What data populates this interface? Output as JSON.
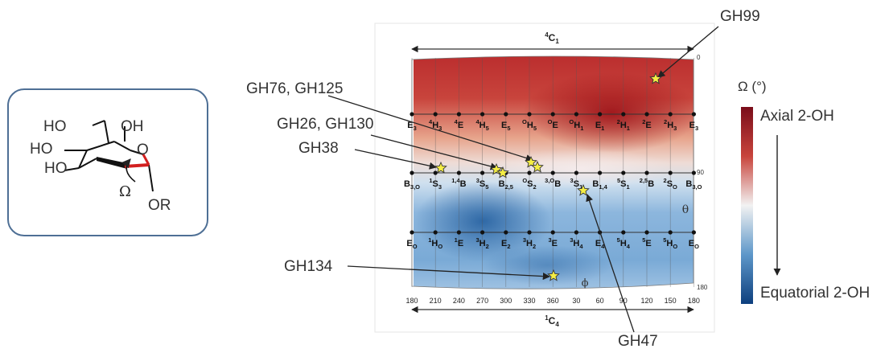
{
  "molecule": {
    "groups": [
      "HO",
      "OH",
      "HO",
      "HO",
      "O",
      "OR"
    ],
    "angle_symbol": "Ω"
  },
  "map": {
    "top_label": "4C1",
    "bottom_label": "1C4",
    "phi_symbol": "ϕ",
    "theta_symbol": "θ",
    "theta_ticks": [
      "0",
      "90",
      "180"
    ],
    "phi_ticks": [
      "180",
      "210",
      "240",
      "270",
      "300",
      "330",
      "360",
      "30",
      "60",
      "90",
      "120",
      "150",
      "180"
    ],
    "row1_conformers": [
      {
        "main": "E",
        "sub": "3"
      },
      {
        "pre": "4",
        "main": "H",
        "sub": "3"
      },
      {
        "pre": "4",
        "main": "E"
      },
      {
        "pre": "4",
        "main": "H",
        "sub": "5"
      },
      {
        "main": "E",
        "sub": "5"
      },
      {
        "pre": "O",
        "main": "H",
        "sub": "5"
      },
      {
        "pre": "O",
        "main": "E"
      },
      {
        "pre": "O",
        "main": "H",
        "sub": "1"
      },
      {
        "main": "E",
        "sub": "1"
      },
      {
        "pre": "2",
        "main": "H",
        "sub": "1"
      },
      {
        "pre": "2",
        "main": "E"
      },
      {
        "pre": "2",
        "main": "H",
        "sub": "3"
      },
      {
        "main": "E",
        "sub": "3"
      }
    ],
    "row2_conformers": [
      {
        "main": "B",
        "sub": "3,O"
      },
      {
        "pre": "1",
        "main": "S",
        "sub": "3"
      },
      {
        "pre": "1,4",
        "main": "B"
      },
      {
        "pre": "3",
        "main": "S",
        "sub": "5"
      },
      {
        "main": "B",
        "sub": "2,5"
      },
      {
        "pre": "O",
        "main": "S",
        "sub": "2"
      },
      {
        "pre": "3,O",
        "main": "B"
      },
      {
        "pre": "3",
        "main": "S",
        "sub": "1"
      },
      {
        "main": "B",
        "sub": "1,4"
      },
      {
        "pre": "5",
        "main": "S",
        "sub": "1"
      },
      {
        "pre": "2,5",
        "main": "B"
      },
      {
        "pre": "2",
        "main": "S",
        "sub": "O"
      },
      {
        "main": "B",
        "sub": "3,O"
      }
    ],
    "row3_conformers": [
      {
        "main": "E",
        "sub": "O"
      },
      {
        "pre": "1",
        "main": "H",
        "sub": "O"
      },
      {
        "pre": "1",
        "main": "E"
      },
      {
        "pre": "3",
        "main": "H",
        "sub": "2"
      },
      {
        "main": "E",
        "sub": "2"
      },
      {
        "pre": "3",
        "main": "H",
        "sub": "2"
      },
      {
        "pre": "3",
        "main": "E"
      },
      {
        "pre": "3",
        "main": "H",
        "sub": "4"
      },
      {
        "main": "E",
        "sub": "4"
      },
      {
        "pre": "5",
        "main": "H",
        "sub": "4"
      },
      {
        "pre": "5",
        "main": "E"
      },
      {
        "pre": "5",
        "main": "H",
        "sub": "O"
      },
      {
        "main": "E",
        "sub": "O"
      }
    ]
  },
  "annotations": [
    {
      "text": "GH99"
    },
    {
      "text": "GH76, GH125"
    },
    {
      "text": "GH26, GH130"
    },
    {
      "text": "GH38"
    },
    {
      "text": "GH134"
    },
    {
      "text": "GH47"
    }
  ],
  "legend": {
    "title": "Ω (°)",
    "top": "Axial 2-OH",
    "bottom": "Equatorial 2-OH",
    "colors": [
      "#7a0d1a",
      "#c8443c",
      "#f2f2f2",
      "#5d97c9",
      "#0d3f7e"
    ]
  }
}
